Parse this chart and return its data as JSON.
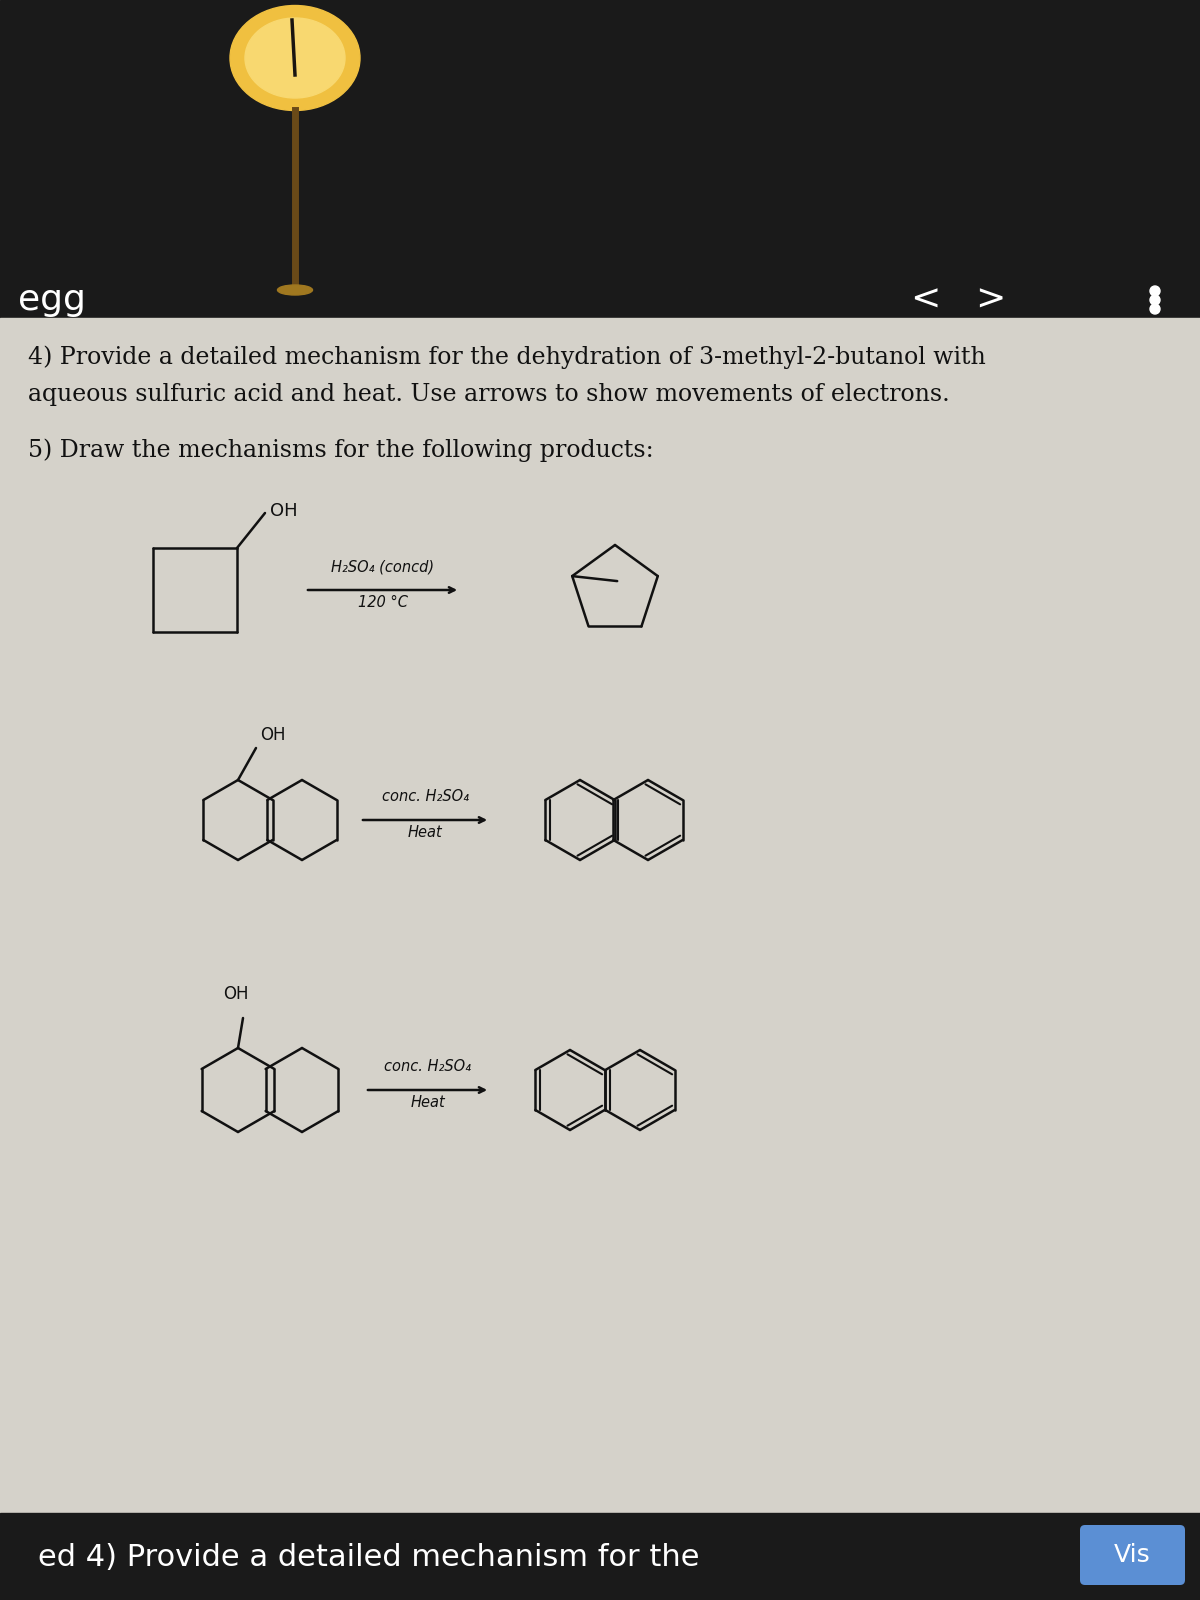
{
  "bg_top": "#1a1a1a",
  "bg_content": "#d5d2ca",
  "bg_bottom": "#1a1a1a",
  "text_color": "#111111",
  "title_label": "egg",
  "nav_left": "<",
  "nav_right": ">",
  "line1": "4) Provide a detailed mechanism for the dehydration of 3-methyl-2-butanol with",
  "line2": "aqueous sulfuric acid and heat. Use arrows to show movements of electrons.",
  "line3": "5) Draw the mechanisms for the following products:",
  "rxn1_reagent_top": "H₂SO₄ (concd)",
  "rxn1_reagent_bot": "120 °C",
  "rxn2_reagent_top": "conc. H₂SO₄",
  "rxn2_reagent_bot": "Heat",
  "rxn3_reagent_top": "conc. H₂SO₄",
  "rxn3_reagent_bot": "Heat",
  "bottom_text": "ed 4) Provide a detailed mechanism for the",
  "bottom_btn": "Vis"
}
